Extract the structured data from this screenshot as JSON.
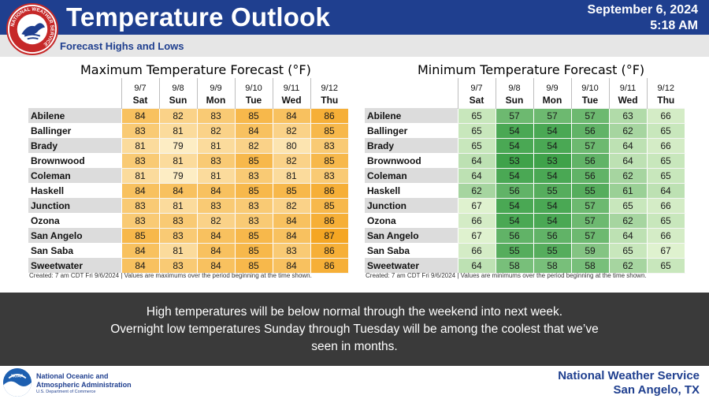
{
  "header": {
    "title": "Temperature Outlook",
    "subtitle": "Forecast Highs and Lows",
    "date": "September 6, 2024",
    "time": "5:18 AM",
    "logo_text": "NATIONAL WEATHER SERVICE",
    "colors": {
      "bar": "#1f3f8f",
      "subbar": "#e6e6e6",
      "logo_ring": "#c62828"
    }
  },
  "chart_data": [
    {
      "type": "table",
      "title": "Maximum Temperature Forecast (°F)",
      "dates": [
        "9/7",
        "9/8",
        "9/9",
        "9/10",
        "9/11",
        "9/12"
      ],
      "days": [
        "Sat",
        "Sun",
        "Mon",
        "Tue",
        "Wed",
        "Thu"
      ],
      "rows": [
        {
          "city": "Abilene",
          "values": [
            84,
            82,
            83,
            85,
            84,
            86
          ]
        },
        {
          "city": "Ballinger",
          "values": [
            83,
            81,
            82,
            84,
            82,
            85
          ]
        },
        {
          "city": "Brady",
          "values": [
            81,
            79,
            81,
            82,
            80,
            83
          ]
        },
        {
          "city": "Brownwood",
          "values": [
            83,
            81,
            83,
            85,
            82,
            85
          ]
        },
        {
          "city": "Coleman",
          "values": [
            81,
            79,
            81,
            83,
            81,
            83
          ]
        },
        {
          "city": "Haskell",
          "values": [
            84,
            84,
            84,
            85,
            85,
            86
          ]
        },
        {
          "city": "Junction",
          "values": [
            83,
            81,
            83,
            83,
            82,
            85
          ]
        },
        {
          "city": "Ozona",
          "values": [
            83,
            83,
            82,
            83,
            84,
            86
          ]
        },
        {
          "city": "San Angelo",
          "values": [
            85,
            83,
            84,
            85,
            84,
            87
          ]
        },
        {
          "city": "San Saba",
          "values": [
            84,
            81,
            84,
            85,
            83,
            86
          ]
        },
        {
          "city": "Sweetwater",
          "values": [
            84,
            83,
            84,
            85,
            84,
            86
          ]
        }
      ],
      "footnote": "Created: 7 am CDT Fri 9/6/2024  |  Values are maximums over the period beginning at the time shown.",
      "color_scale": {
        "low": 79,
        "high": 87,
        "low_color": "#fdedc4",
        "high_color": "#f5a623"
      }
    },
    {
      "type": "table",
      "title": "Minimum Temperature Forecast (°F)",
      "dates": [
        "9/7",
        "9/8",
        "9/9",
        "9/10",
        "9/11",
        "9/12"
      ],
      "days": [
        "Sat",
        "Sun",
        "Mon",
        "Tue",
        "Wed",
        "Thu"
      ],
      "rows": [
        {
          "city": "Abilene",
          "values": [
            65,
            57,
            57,
            57,
            63,
            66
          ]
        },
        {
          "city": "Ballinger",
          "values": [
            65,
            54,
            54,
            56,
            62,
            65
          ]
        },
        {
          "city": "Brady",
          "values": [
            65,
            54,
            54,
            57,
            64,
            66
          ]
        },
        {
          "city": "Brownwood",
          "values": [
            64,
            53,
            53,
            56,
            64,
            65
          ]
        },
        {
          "city": "Coleman",
          "values": [
            64,
            54,
            54,
            56,
            62,
            65
          ]
        },
        {
          "city": "Haskell",
          "values": [
            62,
            56,
            55,
            55,
            61,
            64
          ]
        },
        {
          "city": "Junction",
          "values": [
            67,
            54,
            54,
            57,
            65,
            66
          ]
        },
        {
          "city": "Ozona",
          "values": [
            66,
            54,
            54,
            57,
            62,
            65
          ]
        },
        {
          "city": "San Angelo",
          "values": [
            67,
            56,
            56,
            57,
            64,
            66
          ]
        },
        {
          "city": "San Saba",
          "values": [
            66,
            55,
            55,
            59,
            65,
            67
          ]
        },
        {
          "city": "Sweetwater",
          "values": [
            64,
            58,
            58,
            58,
            62,
            65
          ]
        }
      ],
      "footnote": "Created: 7 am CDT Fri 9/6/2024  |  Values are minimums over the period beginning at the time shown.",
      "color_scale": {
        "low": 53,
        "high": 67,
        "low_color": "#3fa24a",
        "high_color": "#dff2cf"
      }
    }
  ],
  "message": {
    "line1": "High temperatures will be below normal through the weekend into next week.",
    "line2": "Overnight low temperatures Sunday through Tuesday will be among the coolest that we’ve",
    "line3": "seen in months."
  },
  "footer": {
    "noaa_line1": "National Oceanic and",
    "noaa_line2": "Atmospheric Administration",
    "noaa_dept": "U.S. Department of Commerce",
    "noaa_logo_text": "NOAA",
    "office_line1": "National Weather Service",
    "office_line2": "San Angelo, TX"
  }
}
